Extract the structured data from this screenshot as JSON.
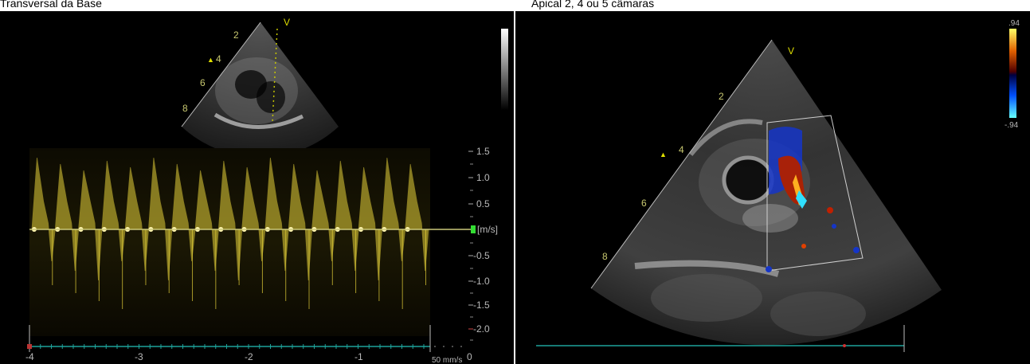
{
  "captions": {
    "left": "Transversal da Base",
    "right": "Apical 2, 4 ou 5 câmaras"
  },
  "left_view": {
    "sector_marker": "V",
    "depth_marks": [
      "2",
      "4",
      "6",
      "8"
    ]
  },
  "doppler": {
    "velocity_ticks": [
      "1.5",
      "1.0",
      "0.5",
      "[m/s]",
      "-0.5",
      "-1.0",
      "-1.5",
      "-2.0"
    ],
    "time_ticks": [
      "-4",
      "-3",
      "-2",
      "-1",
      "0"
    ],
    "sweep_speed": "50 mm/s",
    "waveform_color": "#e6d23a"
  },
  "right_view": {
    "sector_marker": "V",
    "depth_marks": [
      "2",
      "4",
      "6",
      "8"
    ],
    "color_scale_max": ".94",
    "color_scale_min": "-.94"
  }
}
